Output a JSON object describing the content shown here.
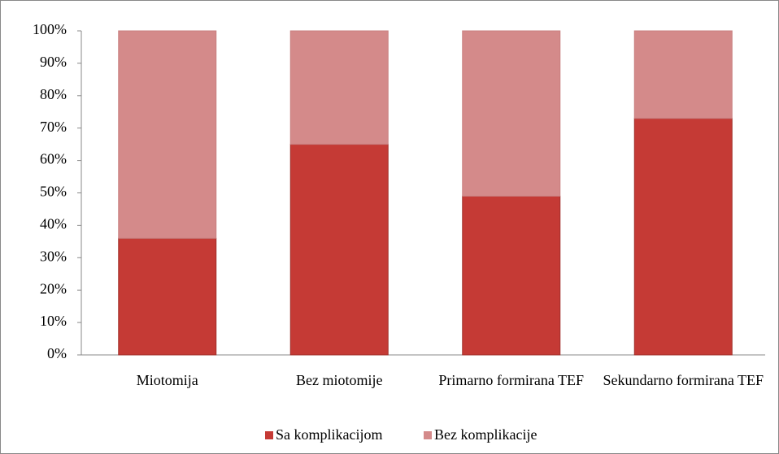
{
  "chart_data": {
    "type": "stacked_bar",
    "categories": [
      "Miotomija",
      "Bez miotomije",
      "Primarno formirana TEF",
      "Sekundarno formirana TEF"
    ],
    "series": [
      {
        "name": "Sa komplikacijom",
        "color": "#c53a35",
        "values": [
          36,
          65,
          49,
          73
        ]
      },
      {
        "name": "Bez komplikacije",
        "color": "#d48a8a",
        "values": [
          64,
          35,
          51,
          27
        ]
      }
    ],
    "ylim": [
      0,
      100
    ],
    "yticks": [
      {
        "value": 0,
        "label": "0%"
      },
      {
        "value": 10,
        "label": "10%"
      },
      {
        "value": 20,
        "label": "20%"
      },
      {
        "value": 30,
        "label": "30%"
      },
      {
        "value": 40,
        "label": "40%"
      },
      {
        "value": 50,
        "label": "50%"
      },
      {
        "value": 60,
        "label": "60%"
      },
      {
        "value": 70,
        "label": "70%"
      },
      {
        "value": 80,
        "label": "80%"
      },
      {
        "value": 90,
        "label": "90%"
      },
      {
        "value": 100,
        "label": "100%"
      }
    ],
    "legend": "bottom"
  }
}
